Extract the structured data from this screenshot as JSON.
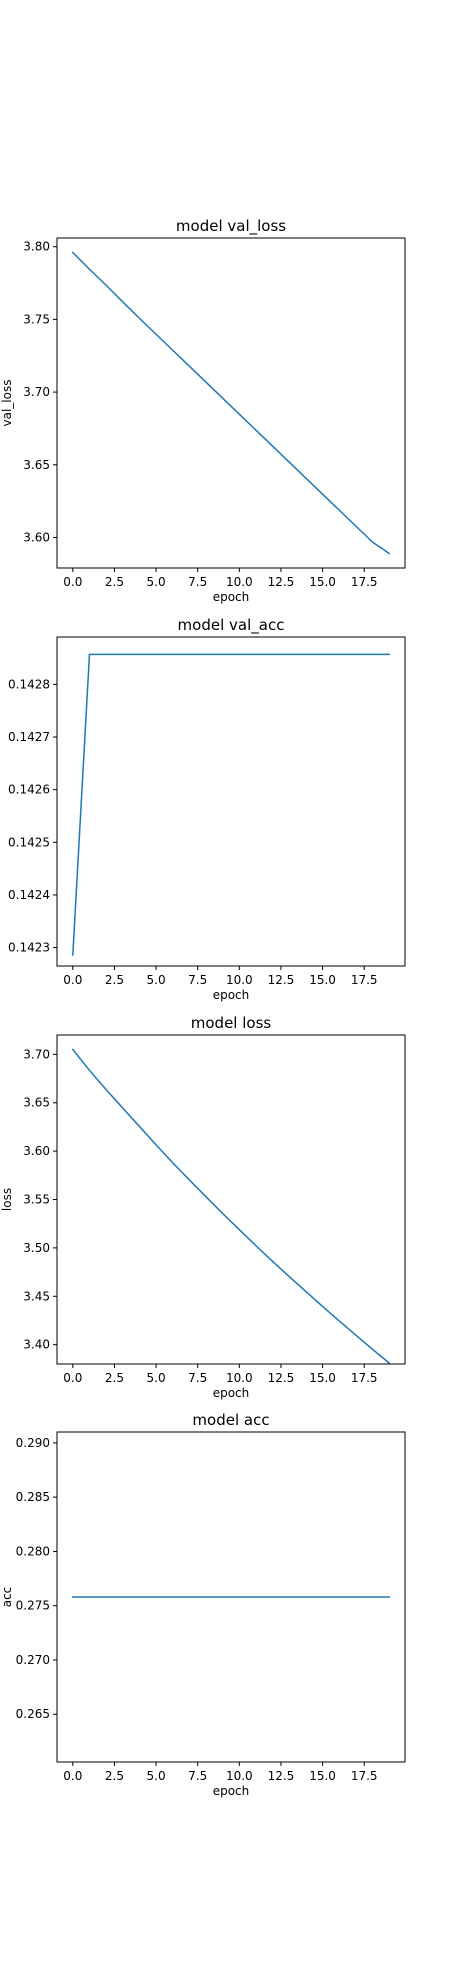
{
  "chart_data": [
    {
      "type": "line",
      "title": "model val_loss",
      "xlabel": "epoch",
      "ylabel": "val_loss",
      "xlim": [
        -0.95,
        19.95
      ],
      "ylim": [
        3.579,
        3.806
      ],
      "xticks": [
        0,
        2.5,
        5,
        7.5,
        10,
        12.5,
        15,
        17.5
      ],
      "xtick_labels": [
        "0.0",
        "2.5",
        "5.0",
        "7.5",
        "10.0",
        "12.5",
        "15.0",
        "17.5"
      ],
      "yticks": [
        3.6,
        3.65,
        3.7,
        3.75,
        3.8
      ],
      "ytick_labels": [
        "3.60",
        "3.65",
        "3.70",
        "3.75",
        "3.80"
      ],
      "grid": false,
      "color": "#1f77b4",
      "series": [
        {
          "x": [
            0,
            1,
            2,
            3,
            4,
            5,
            6,
            7,
            8,
            9,
            10,
            11,
            12,
            13,
            14,
            15,
            16,
            17,
            18,
            19
          ],
          "y": [
            3.796,
            3.7845,
            3.7735,
            3.762,
            3.7508,
            3.7398,
            3.7288,
            3.7178,
            3.7068,
            3.6958,
            3.6848,
            3.6738,
            3.6628,
            3.6518,
            3.6408,
            3.6298,
            3.6188,
            3.6078,
            3.5968,
            3.589
          ]
        }
      ]
    },
    {
      "type": "line",
      "title": "model val_acc",
      "xlabel": "epoch",
      "ylabel": "",
      "xlim": [
        -0.95,
        19.95
      ],
      "ylim": [
        0.142265,
        0.14289
      ],
      "xticks": [
        0,
        2.5,
        5,
        7.5,
        10,
        12.5,
        15,
        17.5
      ],
      "xtick_labels": [
        "0.0",
        "2.5",
        "5.0",
        "7.5",
        "10.0",
        "12.5",
        "15.0",
        "17.5"
      ],
      "yticks": [
        0.1423,
        0.1424,
        0.1425,
        0.1426,
        0.1427,
        0.1428
      ],
      "ytick_labels": [
        "0.1423",
        "0.1424",
        "0.1425",
        "0.1426",
        "0.1427",
        "0.1428"
      ],
      "grid": false,
      "color": "#1f77b4",
      "series": [
        {
          "x": [
            0,
            1,
            2,
            3,
            4,
            5,
            6,
            7,
            8,
            9,
            10,
            11,
            12,
            13,
            14,
            15,
            16,
            17,
            18,
            19
          ],
          "y": [
            0.142286,
            0.142857,
            0.142857,
            0.142857,
            0.142857,
            0.142857,
            0.142857,
            0.142857,
            0.142857,
            0.142857,
            0.142857,
            0.142857,
            0.142857,
            0.142857,
            0.142857,
            0.142857,
            0.142857,
            0.142857,
            0.142857,
            0.142857
          ]
        }
      ]
    },
    {
      "type": "line",
      "title": "model loss",
      "xlabel": "epoch",
      "ylabel": "loss",
      "xlim": [
        -0.95,
        19.95
      ],
      "ylim": [
        3.38,
        3.72
      ],
      "xticks": [
        0,
        2.5,
        5,
        7.5,
        10,
        12.5,
        15,
        17.5
      ],
      "xtick_labels": [
        "0.0",
        "2.5",
        "5.0",
        "7.5",
        "10.0",
        "12.5",
        "15.0",
        "17.5"
      ],
      "yticks": [
        3.4,
        3.45,
        3.5,
        3.55,
        3.6,
        3.65,
        3.7
      ],
      "ytick_labels": [
        "3.40",
        "3.45",
        "3.50",
        "3.55",
        "3.60",
        "3.65",
        "3.70"
      ],
      "grid": false,
      "color": "#1f77b4",
      "series": [
        {
          "x": [
            0,
            1,
            2,
            3,
            4,
            5,
            6,
            7,
            8,
            9,
            10,
            11,
            12,
            13,
            14,
            15,
            16,
            17,
            18,
            19
          ],
          "y": [
            3.705,
            3.6835,
            3.6635,
            3.6445,
            3.6255,
            3.6065,
            3.588,
            3.5702,
            3.5528,
            3.5355,
            3.5188,
            3.5022,
            3.486,
            3.4702,
            3.4548,
            3.4395,
            3.4245,
            3.4098,
            3.3952,
            3.381
          ]
        }
      ]
    },
    {
      "type": "line",
      "title": "model acc",
      "xlabel": "epoch",
      "ylabel": "acc",
      "xlim": [
        -0.95,
        19.95
      ],
      "ylim": [
        0.2606,
        0.291
      ],
      "xticks": [
        0,
        2.5,
        5,
        7.5,
        10,
        12.5,
        15,
        17.5
      ],
      "xtick_labels": [
        "0.0",
        "2.5",
        "5.0",
        "7.5",
        "10.0",
        "12.5",
        "15.0",
        "17.5"
      ],
      "yticks": [
        0.265,
        0.27,
        0.275,
        0.28,
        0.285,
        0.29
      ],
      "ytick_labels": [
        "0.265",
        "0.270",
        "0.275",
        "0.280",
        "0.285",
        "0.290"
      ],
      "grid": false,
      "color": "#1f77b4",
      "series": [
        {
          "x": [
            0,
            1,
            2,
            3,
            4,
            5,
            6,
            7,
            8,
            9,
            10,
            11,
            12,
            13,
            14,
            15,
            16,
            17,
            18,
            19
          ],
          "y": [
            0.2758,
            0.2758,
            0.2758,
            0.2758,
            0.2758,
            0.2758,
            0.2758,
            0.2758,
            0.2758,
            0.2758,
            0.2758,
            0.2758,
            0.2758,
            0.2758,
            0.2758,
            0.2758,
            0.2758,
            0.2758,
            0.2758,
            0.2758
          ]
        }
      ]
    }
  ]
}
